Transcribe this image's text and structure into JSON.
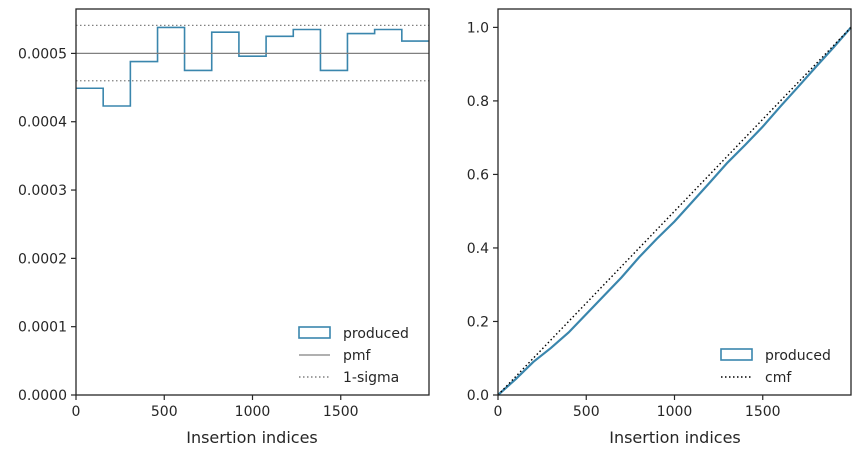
{
  "chart_data": [
    {
      "type": "histogram-step",
      "xlabel": "Insertion indices",
      "ylabel": "",
      "xlim": [
        0,
        2000
      ],
      "ylim": [
        0,
        0.000565
      ],
      "xticks": [
        0,
        500,
        1000,
        1500
      ],
      "yticks": [
        0,
        0.0001,
        0.0002,
        0.0003,
        0.0004,
        0.0005
      ],
      "ytick_labels": [
        "0.0000",
        "0.0001",
        "0.0002",
        "0.0003",
        "0.0004",
        "0.0005"
      ],
      "grid": false,
      "legend_position": "lower-right",
      "series": [
        {
          "name": "produced",
          "kind": "step",
          "color": "#3a86ad",
          "bin_edges": [
            0,
            154,
            308,
            462,
            615,
            769,
            923,
            1077,
            1231,
            1385,
            1538,
            1692,
            1846,
            2000
          ],
          "values": [
            0.000449,
            0.000423,
            0.000488,
            0.000538,
            0.000475,
            0.000531,
            0.000496,
            0.000525,
            0.000535,
            0.000475,
            0.000529,
            0.000535,
            0.000518
          ]
        },
        {
          "name": "pmf",
          "kind": "hline",
          "color": "#808080",
          "y": 0.0005
        },
        {
          "name": "1-sigma",
          "kind": "hline-dotted",
          "color": "#808080",
          "y": [
            0.00046,
            0.000541
          ]
        }
      ]
    },
    {
      "type": "line",
      "xlabel": "Insertion indices",
      "ylabel": "",
      "xlim": [
        0,
        2000
      ],
      "ylim": [
        0,
        1.05
      ],
      "xticks": [
        0,
        500,
        1000,
        1500
      ],
      "yticks": [
        0,
        0.2,
        0.4,
        0.6,
        0.8,
        1.0
      ],
      "ytick_labels": [
        "0.0",
        "0.2",
        "0.4",
        "0.6",
        "0.8",
        "1.0"
      ],
      "grid": false,
      "legend_position": "lower-right",
      "series": [
        {
          "name": "produced",
          "kind": "line",
          "color": "#3a86ad",
          "x": [
            0,
            100,
            200,
            300,
            400,
            500,
            600,
            700,
            800,
            900,
            1000,
            1100,
            1200,
            1300,
            1400,
            1500,
            1600,
            1700,
            1800,
            1900,
            2000
          ],
          "y": [
            0,
            0.043,
            0.09,
            0.128,
            0.17,
            0.22,
            0.27,
            0.32,
            0.375,
            0.425,
            0.472,
            0.525,
            0.578,
            0.632,
            0.68,
            0.73,
            0.785,
            0.838,
            0.892,
            0.945,
            1.0
          ]
        },
        {
          "name": "cmf",
          "kind": "line-dotted",
          "color": "#000000",
          "x": [
            0,
            2000
          ],
          "y": [
            0,
            1.0
          ]
        }
      ]
    }
  ]
}
